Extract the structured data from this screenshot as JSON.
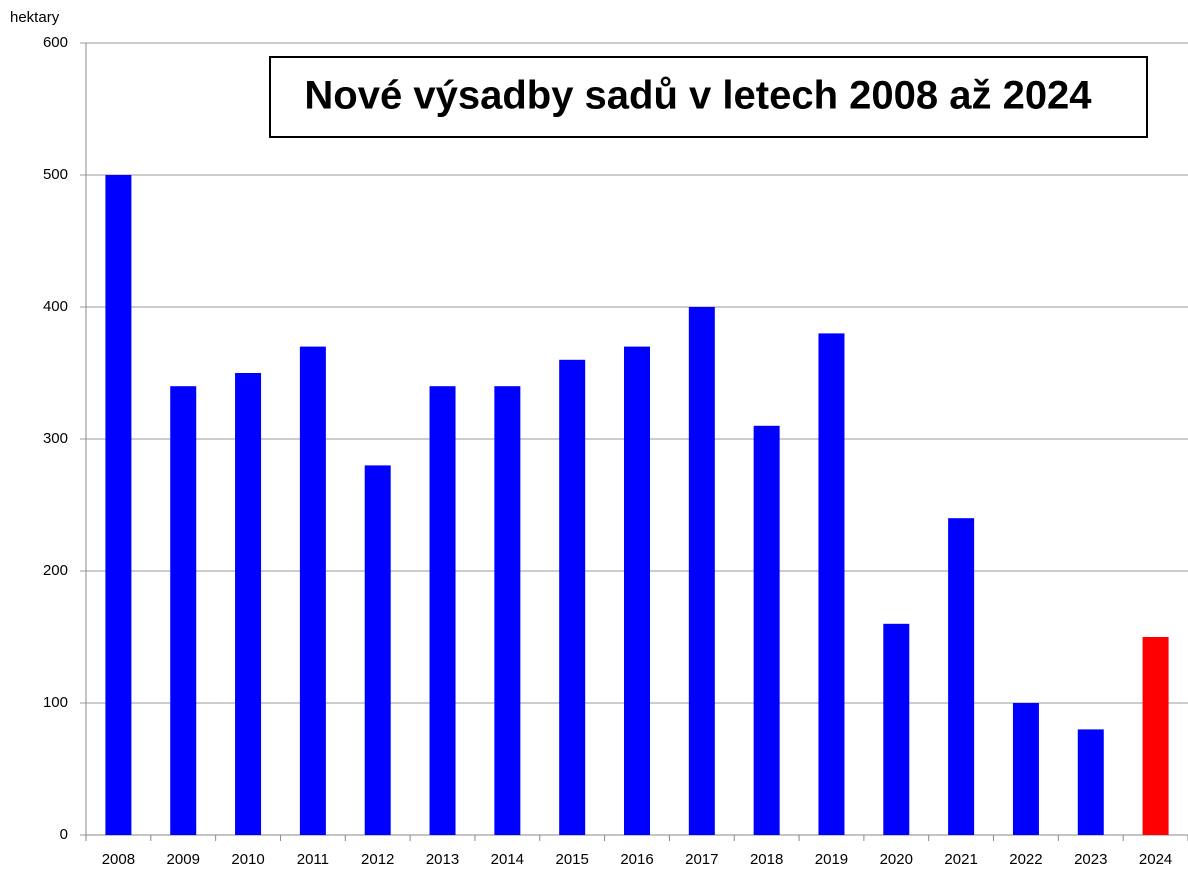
{
  "chart_data": {
    "type": "bar",
    "title": "Nové výsadby sadů v letech 2008 až 2024",
    "y_axis_label": "hektary",
    "categories": [
      "2008",
      "2009",
      "2010",
      "2011",
      "2012",
      "2013",
      "2014",
      "2015",
      "2016",
      "2017",
      "2018",
      "2019",
      "2020",
      "2021",
      "2022",
      "2023",
      "2024"
    ],
    "values": [
      500,
      340,
      350,
      370,
      280,
      340,
      340,
      360,
      370,
      400,
      310,
      380,
      160,
      240,
      100,
      80,
      150
    ],
    "colors": [
      "#0000ff",
      "#0000ff",
      "#0000ff",
      "#0000ff",
      "#0000ff",
      "#0000ff",
      "#0000ff",
      "#0000ff",
      "#0000ff",
      "#0000ff",
      "#0000ff",
      "#0000ff",
      "#0000ff",
      "#0000ff",
      "#0000ff",
      "#0000ff",
      "#ff0000"
    ],
    "ylim": [
      0,
      600
    ],
    "yticks": [
      0,
      100,
      200,
      300,
      400,
      500,
      600
    ],
    "grid": true
  }
}
